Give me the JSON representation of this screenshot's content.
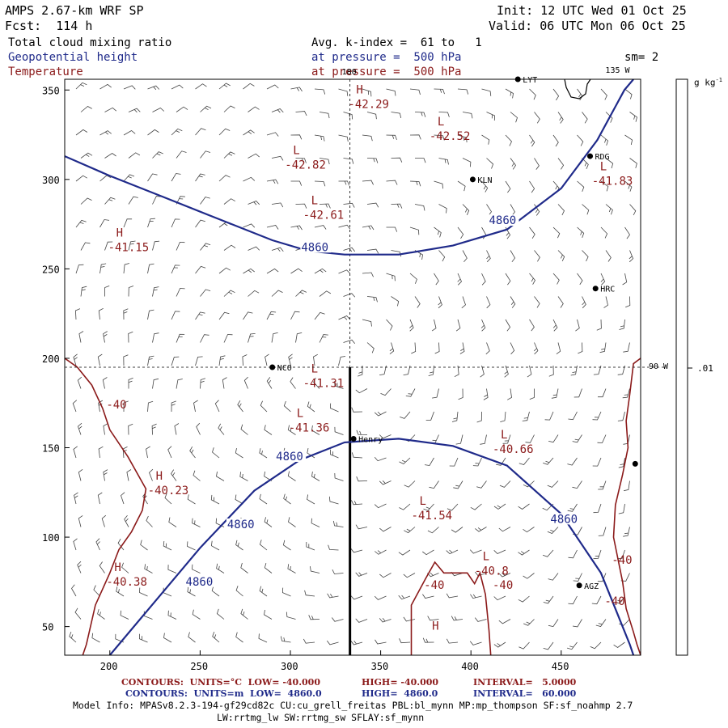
{
  "header": {
    "model": "AMPS 2.67-km WRF SP",
    "forecast": "Fcst:  114 h",
    "init": "Init: 12 UTC Wed 01 Oct 25",
    "valid": "Valid: 06 UTC Mon 06 Oct 25",
    "field1": "Total cloud mixing ratio",
    "field2": "Geopotential height",
    "field3": "Temperature",
    "avg": "Avg. k-index =  61 to   1",
    "pressure1": "at pressure =  500 hPa",
    "pressure2": "at pressure =  500 hPa",
    "sm": "sm= 2"
  },
  "colorbar": {
    "unit": "g kg",
    "unit_sup": "-1",
    "tick": ".01"
  },
  "chart_data": {
    "type": "contour_map",
    "xlim": [
      175,
      494
    ],
    "ylim": [
      34,
      356
    ],
    "xticks": [
      200,
      250,
      300,
      350,
      400,
      450
    ],
    "yticks": [
      50,
      100,
      150,
      200,
      250,
      300,
      350
    ],
    "lon_labels": [
      {
        "text": "180",
        "x": 333,
        "y": 356
      },
      {
        "text": "135 W",
        "x": 470,
        "y": 356
      },
      {
        "text": "90 W",
        "x": 494,
        "y": 195
      }
    ],
    "grid_lines": {
      "x": 333,
      "y": 195
    },
    "cross_section": {
      "x": 333,
      "y_from": 34,
      "y_to": 195
    },
    "height_contour_value": "4860",
    "height_contours": [
      [
        [
          175,
          313
        ],
        [
          200,
          302
        ],
        [
          230,
          290
        ],
        [
          260,
          278
        ],
        [
          290,
          266
        ],
        [
          310,
          260
        ],
        [
          330,
          258
        ],
        [
          360,
          258
        ],
        [
          390,
          263
        ],
        [
          420,
          272
        ],
        [
          450,
          295
        ],
        [
          470,
          322
        ],
        [
          485,
          350
        ],
        [
          490,
          356
        ]
      ],
      [
        [
          200,
          34
        ],
        [
          220,
          58
        ],
        [
          250,
          94
        ],
        [
          280,
          126
        ],
        [
          305,
          143
        ],
        [
          330,
          153
        ],
        [
          360,
          155
        ],
        [
          390,
          151
        ],
        [
          420,
          140
        ],
        [
          450,
          113
        ],
        [
          472,
          80
        ],
        [
          488,
          40
        ],
        [
          490,
          34
        ]
      ]
    ],
    "height_labels": [
      {
        "text": "4860",
        "x": 306,
        "y": 260
      },
      {
        "text": "4860",
        "x": 410,
        "y": 275
      },
      {
        "text": "4860",
        "x": 292,
        "y": 143
      },
      {
        "text": "4860",
        "x": 265,
        "y": 105
      },
      {
        "text": "4860",
        "x": 242,
        "y": 73
      },
      {
        "text": "4860",
        "x": 444,
        "y": 108
      }
    ],
    "temp_contours": [
      [
        [
          175,
          200
        ],
        [
          182,
          195
        ],
        [
          190,
          185
        ],
        [
          196,
          172
        ],
        [
          200,
          160
        ],
        [
          210,
          145
        ],
        [
          220,
          127
        ],
        [
          218,
          115
        ],
        [
          212,
          103
        ],
        [
          205,
          93
        ],
        [
          200,
          80
        ],
        [
          192,
          62
        ],
        [
          187,
          40
        ],
        [
          185,
          34
        ]
      ],
      [
        [
          367,
          34
        ],
        [
          367,
          62
        ],
        [
          375,
          77
        ],
        [
          380,
          86
        ],
        [
          385,
          80
        ],
        [
          392,
          80
        ],
        [
          398,
          80
        ],
        [
          402,
          74
        ],
        [
          405,
          80
        ],
        [
          408,
          68
        ],
        [
          410,
          48
        ],
        [
          411,
          34
        ]
      ],
      [
        [
          494,
          200
        ],
        [
          490,
          197
        ],
        [
          488,
          180
        ],
        [
          486,
          165
        ],
        [
          487,
          150
        ],
        [
          484,
          135
        ],
        [
          480,
          118
        ],
        [
          479,
          100
        ],
        [
          482,
          85
        ],
        [
          484,
          75
        ],
        [
          486,
          60
        ],
        [
          490,
          47
        ],
        [
          492,
          40
        ],
        [
          494,
          34
        ]
      ]
    ],
    "temp_labels": [
      {
        "text": "-40",
        "x": 198,
        "y": 172
      },
      {
        "text": "-40",
        "x": 374,
        "y": 71
      },
      {
        "text": "-40",
        "x": 412,
        "y": 71
      },
      {
        "text": "-40",
        "x": 478,
        "y": 85
      },
      {
        "text": "-40",
        "x": 474,
        "y": 62
      }
    ],
    "extrema": [
      {
        "type": "H",
        "value": "-42.29",
        "x": 332,
        "y": 340
      },
      {
        "type": "L",
        "value": "-42.52",
        "x": 377,
        "y": 322
      },
      {
        "type": "L",
        "value": "-42.82",
        "x": 297,
        "y": 306
      },
      {
        "type": "L",
        "value": "-41.83",
        "x": 467,
        "y": 297
      },
      {
        "type": "L",
        "value": "-42.61",
        "x": 307,
        "y": 278
      },
      {
        "type": "H",
        "value": "-41.15",
        "x": 199,
        "y": 260
      },
      {
        "type": "L",
        "value": "-41.31",
        "x": 307,
        "y": 184
      },
      {
        "type": "L",
        "value": "-41.36",
        "x": 299,
        "y": 159
      },
      {
        "type": "L",
        "value": "-40.66",
        "x": 412,
        "y": 147
      },
      {
        "type": "H",
        "value": "-40.23",
        "x": 221,
        "y": 124
      },
      {
        "type": "L",
        "value": "-41.54",
        "x": 367,
        "y": 110
      },
      {
        "type": "L",
        "value": "-40.8",
        "x": 402,
        "y": 79
      },
      {
        "type": "H",
        "value": "-40.38",
        "x": 198,
        "y": 73
      },
      {
        "type": "H",
        "value": "",
        "x": 374,
        "y": 40
      }
    ],
    "stations": [
      {
        "name": "LYT",
        "x": 426,
        "y": 356
      },
      {
        "name": "RDG",
        "x": 466,
        "y": 313
      },
      {
        "name": "KLN",
        "x": 401,
        "y": 300
      },
      {
        "name": "HRC",
        "x": 469,
        "y": 239
      },
      {
        "name": "NCO",
        "x": 290,
        "y": 195
      },
      {
        "name": "Henry",
        "x": 335,
        "y": 155
      },
      {
        "name": "AGZ",
        "x": 460,
        "y": 73
      },
      {
        "name": "",
        "x": 491,
        "y": 141
      }
    ]
  },
  "footer": {
    "line1_a": "CONTOURS:  UNITS=°C  LOW= -40.000",
    "line1_b": "HIGH= -40.000",
    "line1_c": "INTERVAL=   5.0000",
    "line2_a": "CONTOURS:  UNITS=m  LOW=  4860.0",
    "line2_b": "HIGH=  4860.0",
    "line2_c": "INTERVAL=   60.000",
    "model_info_1": "Model Info: MPASv8.2.3-194-gf29cd82c CU:cu_grell_freitas PBL:bl_mynn MP:mp_thompson SF:sf_noahmp 2.7",
    "model_info_2": "LW:rrtmg_lw SW:rrtmg_sw SFLAY:sf_mynn"
  },
  "colors": {
    "height": "#1f2a8a",
    "temperature": "#8b1a1a",
    "barb": "#444444"
  }
}
